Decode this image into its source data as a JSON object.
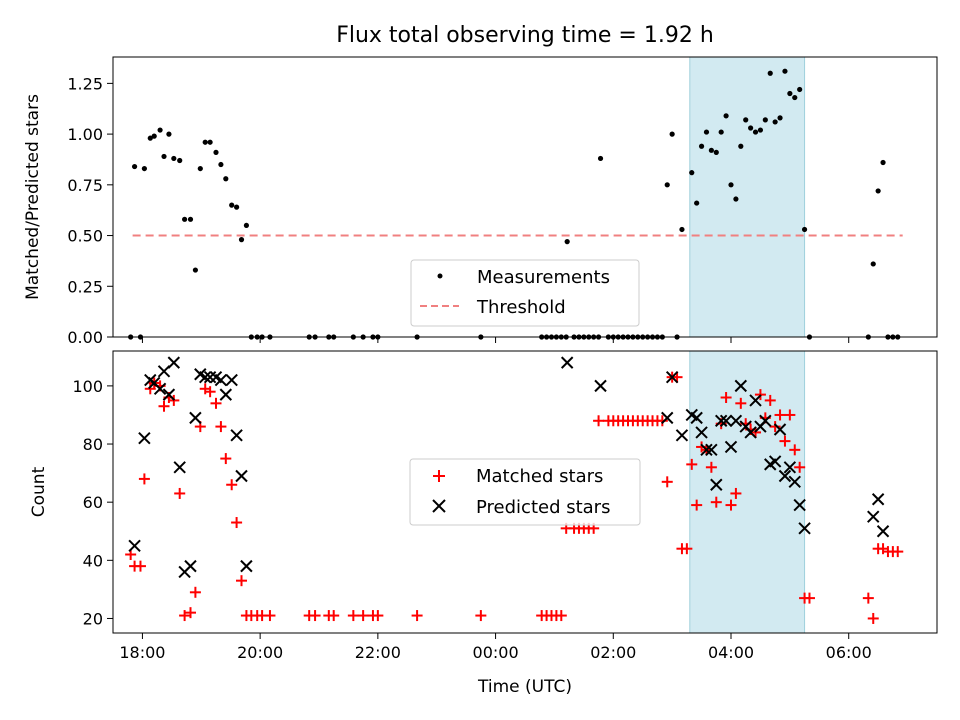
{
  "chart_data": [
    {
      "type": "scatter",
      "title": "Flux total observing time = 1.92 h",
      "xlabel": "",
      "ylabel": "Matched/Predicted stars",
      "xlim": [
        "17:30",
        "07:30"
      ],
      "ylim": [
        0,
        1.38
      ],
      "yticks": [
        0.0,
        0.25,
        0.5,
        0.75,
        1.0,
        1.25
      ],
      "ytick_labels": [
        "0.00",
        "0.25",
        "0.50",
        "0.75",
        "1.00",
        "1.25"
      ],
      "highlight_span": [
        "03:18",
        "05:15"
      ],
      "highlight_color": "#add8e6",
      "legend_position": "lower center",
      "series": [
        {
          "name": "Measurements",
          "marker": "point",
          "color": "#000000",
          "points": [
            [
              "17:48",
              0
            ],
            [
              "17:52",
              0.84
            ],
            [
              "17:58",
              0
            ],
            [
              "18:02",
              0.83
            ],
            [
              "18:08",
              0.98
            ],
            [
              "18:12",
              0.99
            ],
            [
              "18:18",
              1.02
            ],
            [
              "18:22",
              0.89
            ],
            [
              "18:27",
              1.0
            ],
            [
              "18:32",
              0.88
            ],
            [
              "18:38",
              0.87
            ],
            [
              "18:43",
              0.58
            ],
            [
              "18:49",
              0.58
            ],
            [
              "18:54",
              0.33
            ],
            [
              "18:59",
              0.83
            ],
            [
              "19:04",
              0.96
            ],
            [
              "19:09",
              0.96
            ],
            [
              "19:15",
              0.91
            ],
            [
              "19:20",
              0.85
            ],
            [
              "19:25",
              0.78
            ],
            [
              "19:31",
              0.65
            ],
            [
              "19:36",
              0.64
            ],
            [
              "19:41",
              0.48
            ],
            [
              "19:46",
              0.55
            ],
            [
              "19:51",
              0
            ],
            [
              "19:57",
              0
            ],
            [
              "20:02",
              0
            ],
            [
              "20:10",
              0
            ],
            [
              "20:50",
              0
            ],
            [
              "20:56",
              0
            ],
            [
              "21:10",
              0
            ],
            [
              "21:15",
              0
            ],
            [
              "21:35",
              0
            ],
            [
              "21:45",
              0
            ],
            [
              "21:55",
              0
            ],
            [
              "22:00",
              0
            ],
            [
              "22:40",
              0
            ],
            [
              "23:45",
              0
            ],
            [
              "00:47",
              0
            ],
            [
              "00:52",
              0
            ],
            [
              "00:57",
              0
            ],
            [
              "01:02",
              0
            ],
            [
              "01:07",
              0
            ],
            [
              "01:12",
              0
            ],
            [
              "01:13",
              0.47
            ],
            [
              "01:20",
              0
            ],
            [
              "01:25",
              0
            ],
            [
              "01:30",
              0
            ],
            [
              "01:35",
              0
            ],
            [
              "01:40",
              0
            ],
            [
              "01:45",
              0
            ],
            [
              "01:47",
              0.88
            ],
            [
              "01:55",
              0
            ],
            [
              "02:00",
              0
            ],
            [
              "02:05",
              0
            ],
            [
              "02:10",
              0
            ],
            [
              "02:15",
              0
            ],
            [
              "02:20",
              0
            ],
            [
              "02:25",
              0
            ],
            [
              "02:30",
              0
            ],
            [
              "02:35",
              0
            ],
            [
              "02:40",
              0
            ],
            [
              "02:45",
              0
            ],
            [
              "02:50",
              0
            ],
            [
              "02:55",
              0.75
            ],
            [
              "03:00",
              1.0
            ],
            [
              "03:05",
              0
            ],
            [
              "03:10",
              0.53
            ],
            [
              "03:20",
              0.81
            ],
            [
              "03:25",
              0.66
            ],
            [
              "03:30",
              0.94
            ],
            [
              "03:35",
              1.01
            ],
            [
              "03:40",
              0.92
            ],
            [
              "03:45",
              0.91
            ],
            [
              "03:50",
              1.01
            ],
            [
              "03:55",
              1.09
            ],
            [
              "04:00",
              0.75
            ],
            [
              "04:05",
              0.68
            ],
            [
              "04:10",
              0.94
            ],
            [
              "04:15",
              1.07
            ],
            [
              "04:20",
              1.03
            ],
            [
              "04:25",
              1.01
            ],
            [
              "04:30",
              1.02
            ],
            [
              "04:35",
              1.07
            ],
            [
              "04:40",
              1.3
            ],
            [
              "04:45",
              1.06
            ],
            [
              "04:50",
              1.08
            ],
            [
              "04:55",
              1.31
            ],
            [
              "05:00",
              1.2
            ],
            [
              "05:05",
              1.18
            ],
            [
              "05:10",
              1.22
            ],
            [
              "05:15",
              0.53
            ],
            [
              "05:20",
              0
            ],
            [
              "06:20",
              0
            ],
            [
              "06:25",
              0.36
            ],
            [
              "06:30",
              0.72
            ],
            [
              "06:35",
              0.86
            ],
            [
              "06:40",
              0
            ],
            [
              "06:45",
              0
            ],
            [
              "06:50",
              0
            ]
          ]
        },
        {
          "name": "Threshold",
          "style": "dashed",
          "color": "#f08080",
          "points": [
            [
              "17:50",
              0.5
            ],
            [
              "06:55",
              0.5
            ]
          ]
        }
      ]
    },
    {
      "type": "scatter",
      "title": "",
      "xlabel": "Time (UTC)",
      "ylabel": "Count",
      "xlim": [
        "17:30",
        "07:30"
      ],
      "ylim": [
        15,
        112
      ],
      "yticks": [
        20,
        40,
        60,
        80,
        100
      ],
      "ytick_labels": [
        "20",
        "40",
        "60",
        "80",
        "100"
      ],
      "xticks": [
        "18:00",
        "20:00",
        "22:00",
        "00:00",
        "02:00",
        "04:00",
        "06:00"
      ],
      "highlight_span": [
        "03:18",
        "05:15"
      ],
      "highlight_color": "#add8e6",
      "legend_position": "center",
      "series": [
        {
          "name": "Matched stars",
          "marker": "plus",
          "color": "#ff0000",
          "points": [
            [
              "17:48",
              42
            ],
            [
              "17:52",
              38
            ],
            [
              "17:58",
              38
            ],
            [
              "18:02",
              68
            ],
            [
              "18:08",
              99
            ],
            [
              "18:12",
              101
            ],
            [
              "18:18",
              100
            ],
            [
              "18:22",
              93
            ],
            [
              "18:27",
              96
            ],
            [
              "18:32",
              95
            ],
            [
              "18:38",
              63
            ],
            [
              "18:43",
              21
            ],
            [
              "18:49",
              22
            ],
            [
              "18:54",
              29
            ],
            [
              "18:59",
              86
            ],
            [
              "19:04",
              99
            ],
            [
              "19:09",
              98
            ],
            [
              "19:15",
              94
            ],
            [
              "19:20",
              86
            ],
            [
              "19:25",
              75
            ],
            [
              "19:31",
              66
            ],
            [
              "19:36",
              53
            ],
            [
              "19:41",
              33
            ],
            [
              "19:46",
              21
            ],
            [
              "19:51",
              21
            ],
            [
              "19:57",
              21
            ],
            [
              "20:02",
              21
            ],
            [
              "20:10",
              21
            ],
            [
              "20:50",
              21
            ],
            [
              "20:56",
              21
            ],
            [
              "21:10",
              21
            ],
            [
              "21:15",
              21
            ],
            [
              "21:35",
              21
            ],
            [
              "21:45",
              21
            ],
            [
              "21:55",
              21
            ],
            [
              "22:00",
              21
            ],
            [
              "22:40",
              21
            ],
            [
              "23:45",
              21
            ],
            [
              "00:47",
              21
            ],
            [
              "00:52",
              21
            ],
            [
              "00:57",
              21
            ],
            [
              "01:02",
              21
            ],
            [
              "01:07",
              21
            ],
            [
              "01:12",
              51
            ],
            [
              "01:20",
              51
            ],
            [
              "01:25",
              51
            ],
            [
              "01:30",
              51
            ],
            [
              "01:35",
              51
            ],
            [
              "01:40",
              51
            ],
            [
              "01:45",
              88
            ],
            [
              "01:55",
              88
            ],
            [
              "02:00",
              88
            ],
            [
              "02:05",
              88
            ],
            [
              "02:10",
              88
            ],
            [
              "02:15",
              88
            ],
            [
              "02:20",
              88
            ],
            [
              "02:25",
              88
            ],
            [
              "02:30",
              88
            ],
            [
              "02:35",
              88
            ],
            [
              "02:40",
              88
            ],
            [
              "02:45",
              88
            ],
            [
              "02:50",
              88
            ],
            [
              "02:55",
              67
            ],
            [
              "03:00",
              103
            ],
            [
              "03:05",
              103
            ],
            [
              "03:10",
              44
            ],
            [
              "03:15",
              44
            ],
            [
              "03:20",
              73
            ],
            [
              "03:25",
              59
            ],
            [
              "03:30",
              79
            ],
            [
              "03:35",
              78
            ],
            [
              "03:40",
              72
            ],
            [
              "03:45",
              60
            ],
            [
              "03:50",
              87
            ],
            [
              "03:55",
              96
            ],
            [
              "04:00",
              59
            ],
            [
              "04:05",
              63
            ],
            [
              "04:10",
              94
            ],
            [
              "04:15",
              87
            ],
            [
              "04:20",
              85
            ],
            [
              "04:25",
              84
            ],
            [
              "04:30",
              97
            ],
            [
              "04:35",
              89
            ],
            [
              "04:40",
              95
            ],
            [
              "04:45",
              86
            ],
            [
              "04:50",
              90
            ],
            [
              "04:55",
              81
            ],
            [
              "05:00",
              90
            ],
            [
              "05:05",
              78
            ],
            [
              "05:10",
              72
            ],
            [
              "05:15",
              27
            ],
            [
              "05:20",
              27
            ],
            [
              "06:20",
              27
            ],
            [
              "06:25",
              20
            ],
            [
              "06:30",
              44
            ],
            [
              "06:35",
              44
            ],
            [
              "06:40",
              43
            ],
            [
              "06:45",
              43
            ],
            [
              "06:50",
              43
            ]
          ]
        },
        {
          "name": "Predicted stars",
          "marker": "x",
          "color": "#000000",
          "points": [
            [
              "17:52",
              45
            ],
            [
              "18:02",
              82
            ],
            [
              "18:08",
              102
            ],
            [
              "18:12",
              101
            ],
            [
              "18:18",
              99
            ],
            [
              "18:22",
              105
            ],
            [
              "18:27",
              97
            ],
            [
              "18:32",
              108
            ],
            [
              "18:38",
              72
            ],
            [
              "18:43",
              36
            ],
            [
              "18:49",
              38
            ],
            [
              "18:54",
              89
            ],
            [
              "18:59",
              104
            ],
            [
              "19:04",
              103
            ],
            [
              "19:09",
              103
            ],
            [
              "19:15",
              103
            ],
            [
              "19:20",
              102
            ],
            [
              "19:25",
              97
            ],
            [
              "19:31",
              102
            ],
            [
              "19:36",
              83
            ],
            [
              "19:41",
              69
            ],
            [
              "19:46",
              38
            ],
            [
              "01:13",
              108
            ],
            [
              "01:47",
              100
            ],
            [
              "02:55",
              89
            ],
            [
              "03:00",
              103
            ],
            [
              "03:10",
              83
            ],
            [
              "03:20",
              90
            ],
            [
              "03:25",
              89
            ],
            [
              "03:30",
              84
            ],
            [
              "03:35",
              78
            ],
            [
              "03:40",
              78
            ],
            [
              "03:45",
              66
            ],
            [
              "03:50",
              88
            ],
            [
              "03:55",
              88
            ],
            [
              "04:00",
              79
            ],
            [
              "04:05",
              88
            ],
            [
              "04:10",
              100
            ],
            [
              "04:15",
              86
            ],
            [
              "04:20",
              84
            ],
            [
              "04:25",
              95
            ],
            [
              "04:30",
              86
            ],
            [
              "04:35",
              88
            ],
            [
              "04:40",
              73
            ],
            [
              "04:45",
              74
            ],
            [
              "04:50",
              85
            ],
            [
              "04:55",
              69
            ],
            [
              "05:00",
              72
            ],
            [
              "05:05",
              67
            ],
            [
              "05:10",
              59
            ],
            [
              "05:15",
              51
            ],
            [
              "06:25",
              55
            ],
            [
              "06:30",
              61
            ],
            [
              "06:35",
              50
            ]
          ]
        }
      ]
    }
  ]
}
